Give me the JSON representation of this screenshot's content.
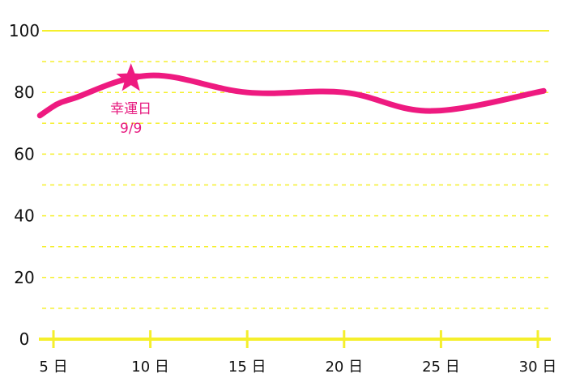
{
  "chart_data": {
    "type": "line",
    "x_ticks": [
      5,
      10,
      15,
      20,
      25,
      30
    ],
    "x_tick_suffix": "日",
    "xlim": [
      5,
      30
    ],
    "y_ticks": [
      0,
      20,
      40,
      60,
      80,
      100
    ],
    "ylim": [
      0,
      100
    ],
    "grid": true,
    "colors": {
      "line": "#ee1a80",
      "grid": "#f5ef2c",
      "axis": "#f5ef2c",
      "text": "#111111"
    },
    "series": [
      {
        "x": [
          4.3,
          5.0,
          5.3,
          6.0,
          10.0,
          15.0,
          20.0,
          24.5,
          30.3
        ],
        "y": [
          72.5,
          75.5,
          76.5,
          78.0,
          85.5,
          80.0,
          80.0,
          74.0,
          80.5
        ]
      }
    ],
    "highlight": {
      "x": 9,
      "y": 84.5,
      "marker": "star-icon",
      "label_line1": "幸運日",
      "label_line2": "9/9"
    }
  }
}
